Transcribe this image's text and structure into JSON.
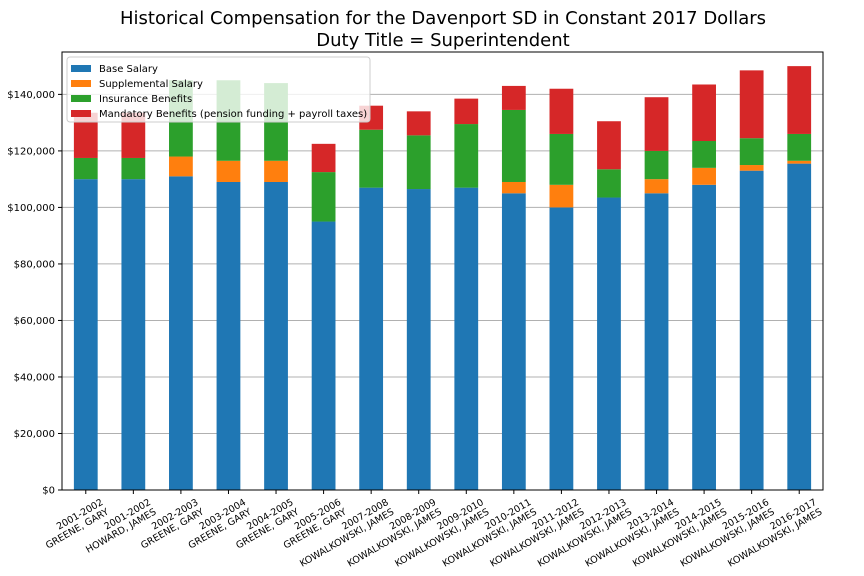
{
  "chart_data": {
    "type": "bar",
    "stacked": true,
    "title": "Historical Compensation for the Davenport SD in Constant 2017 Dollars",
    "subtitle": "Duty Title = Superintendent",
    "xlabel": "",
    "ylabel": "",
    "ylim": [
      0,
      155000
    ],
    "yticks": [
      0,
      20000,
      40000,
      60000,
      80000,
      100000,
      120000,
      140000
    ],
    "ytick_labels": [
      "$0",
      "$20,000",
      "$40,000",
      "$60,000",
      "$80,000",
      "$100,000",
      "$120,000",
      "$140,000"
    ],
    "grid": "horizontal",
    "legend_position": "top-left",
    "categories": [
      [
        "2001-2002",
        "GREENE, GARY"
      ],
      [
        "2001-2002",
        "HOWARD, JAMES"
      ],
      [
        "2002-2003",
        "GREENE, GARY"
      ],
      [
        "2003-2004",
        "GREENE, GARY"
      ],
      [
        "2004-2005",
        "GREENE, GARY"
      ],
      [
        "2005-2006",
        "GREENE, GARY"
      ],
      [
        "2007-2008",
        "KOWALKOWSKI, JAMES"
      ],
      [
        "2008-2009",
        "KOWALKOWSKI, JAMES"
      ],
      [
        "2009-2010",
        "KOWALKOWSKI, JAMES"
      ],
      [
        "2010-2011",
        "KOWALKOWSKI, JAMES"
      ],
      [
        "2011-2012",
        "KOWALKOWSKI, JAMES"
      ],
      [
        "2012-2013",
        "KOWALKOWSKI, JAMES"
      ],
      [
        "2013-2014",
        "KOWALKOWSKI, JAMES"
      ],
      [
        "2014-2015",
        "KOWALKOWSKI, JAMES"
      ],
      [
        "2015-2016",
        "KOWALKOWSKI, JAMES"
      ],
      [
        "2016-2017",
        "KOWALKOWSKI, JAMES"
      ]
    ],
    "series": [
      {
        "name": "Base Salary",
        "color": "#1f77b4",
        "values": [
          110000,
          110000,
          111000,
          109000,
          109000,
          95000,
          107000,
          106500,
          107000,
          105000,
          100000,
          103500,
          105000,
          108000,
          113000,
          115500
        ]
      },
      {
        "name": "Supplemental Salary",
        "color": "#ff7f0e",
        "values": [
          0,
          0,
          7000,
          7500,
          7500,
          0,
          0,
          0,
          0,
          4000,
          8000,
          0,
          5000,
          6000,
          2000,
          1000
        ]
      },
      {
        "name": "Insurance Benefits",
        "color": "#2ca02c",
        "values": [
          7500,
          7500,
          27000,
          28500,
          27500,
          17500,
          20500,
          19000,
          22500,
          25500,
          18000,
          10000,
          10000,
          9500,
          9500,
          9500
        ]
      },
      {
        "name": "Mandatory Benefits (pension funding + payroll taxes)",
        "color": "#d62728",
        "values": [
          16000,
          16000,
          0,
          0,
          0,
          10000,
          8500,
          8500,
          9000,
          8500,
          16000,
          17000,
          19000,
          20000,
          24000,
          24000
        ]
      }
    ]
  }
}
